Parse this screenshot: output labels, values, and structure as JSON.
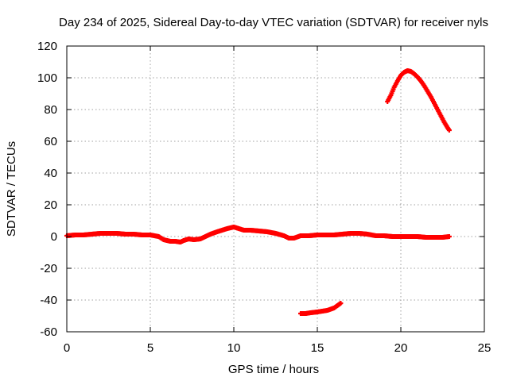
{
  "chart_data": {
    "type": "scatter",
    "title": "Day 234 of 2025, Sidereal Day-to-day VTEC variation (SDTVAR) for receiver nyls",
    "xlabel": "GPS time / hours",
    "ylabel": "SDTVAR / TECUs",
    "xlim": [
      0,
      25
    ],
    "ylim": [
      -60,
      120
    ],
    "xticks": [
      0,
      5,
      10,
      15,
      20,
      25
    ],
    "yticks": [
      -60,
      -40,
      -20,
      0,
      20,
      40,
      60,
      80,
      100,
      120
    ],
    "grid": true,
    "legend": "none",
    "marker": "plus",
    "series": [
      {
        "color": "#ff0000",
        "x": [
          0.0,
          0.5,
          1.0,
          1.5,
          2.0,
          2.5,
          3.0,
          3.5,
          4.0,
          4.5,
          5.0,
          5.5,
          5.8,
          6.2,
          6.5,
          6.8,
          7.0,
          7.3,
          7.6,
          8.0,
          8.3,
          8.6,
          9.0,
          9.3,
          9.6,
          10.0,
          10.3,
          10.6,
          11.0,
          11.5,
          12.0,
          12.5,
          13.0,
          13.3,
          13.6,
          14.0,
          14.5,
          15.0,
          15.5,
          16.0,
          16.5,
          17.0,
          17.5,
          18.0,
          18.5,
          19.0,
          19.5,
          20.0,
          20.5,
          21.0,
          21.5,
          22.0,
          22.5,
          22.9
        ],
        "y": [
          0.5,
          1.0,
          1.0,
          1.5,
          2.0,
          2.0,
          2.0,
          1.5,
          1.5,
          1.0,
          1.0,
          0.0,
          -2.0,
          -3.0,
          -3.0,
          -3.5,
          -2.5,
          -1.5,
          -2.0,
          -1.5,
          0.0,
          1.5,
          3.0,
          4.0,
          5.0,
          6.0,
          5.0,
          4.0,
          4.0,
          3.5,
          3.0,
          2.0,
          0.5,
          -1.0,
          -1.0,
          0.5,
          0.5,
          1.0,
          1.0,
          1.0,
          1.5,
          2.0,
          2.0,
          1.5,
          0.5,
          0.5,
          0.0,
          0.0,
          0.0,
          0.0,
          -0.5,
          -0.5,
          -0.5,
          0.0
        ]
      },
      {
        "color": "#ff0000",
        "x": [
          14.0,
          14.3,
          14.6,
          15.0,
          15.3,
          15.6,
          16.0,
          16.2,
          16.4
        ],
        "y": [
          -48.5,
          -48.5,
          -48.0,
          -47.5,
          -47.0,
          -46.5,
          -45.0,
          -43.5,
          -42.0
        ]
      },
      {
        "color": "#ff0000",
        "x": [
          19.2,
          19.4,
          19.6,
          19.8,
          20.0,
          20.2,
          20.4,
          20.6,
          20.8,
          21.0,
          21.2,
          21.4,
          21.6,
          21.8,
          22.0,
          22.2,
          22.4,
          22.6,
          22.8,
          22.9
        ],
        "y": [
          85.0,
          89.0,
          94.0,
          98.0,
          101.5,
          103.5,
          104.5,
          104.0,
          102.5,
          100.5,
          98.0,
          95.0,
          91.5,
          88.0,
          84.0,
          80.0,
          76.0,
          72.0,
          68.5,
          67.0
        ]
      }
    ]
  }
}
